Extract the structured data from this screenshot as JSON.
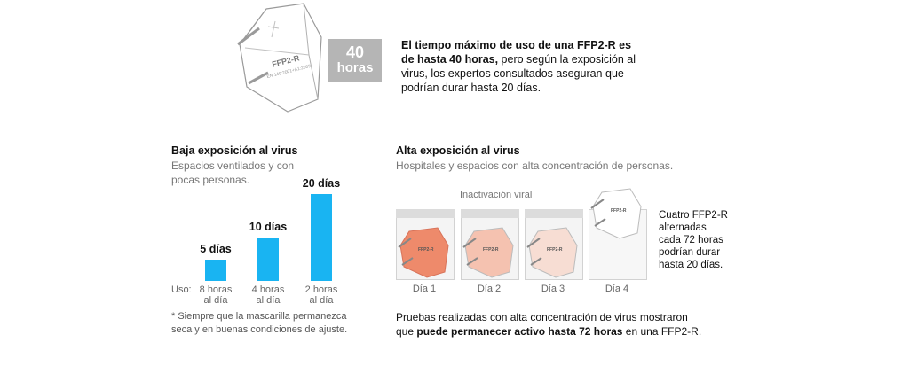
{
  "hero": {
    "mask_label": "FFP2-R",
    "mask_sub": "EN 149:2001+A1:2009",
    "badge_number": "40",
    "badge_unit": "horas",
    "text_bold_1": "El tiempo máximo de uso de una FFP2-R es de hasta 40 horas,",
    "text_rest": " pero según la exposición al virus, los expertos consultados aseguran que podrían durar hasta 20 días."
  },
  "low": {
    "title": "Baja exposición al virus",
    "subtitle": "Espacios ventilados y con pocas personas.",
    "uso_label": "Uso:",
    "note": "* Siempre que la mascarilla permanezca seca y en buenas condiciones de ajuste."
  },
  "high": {
    "title": "Alta exposición al virus",
    "subtitle": "Hospitales y espacios con alta concentración de personas.",
    "inactivation_label": "Inactivación viral",
    "days": [
      "Día 1",
      "Día 2",
      "Día 3",
      "Día 4"
    ],
    "mask_colors": [
      "#ee8a6b",
      "#f5c2b0",
      "#f7ddd3",
      "#ffffff"
    ],
    "side_note": "Cuatro FFP2-R alternadas cada 72 horas podrían durar hasta 20 días.",
    "foot_1": "Pruebas realizadas con alta concentración de virus mostraron",
    "foot_2a": "que ",
    "foot_2b": "puede permanecer activo hasta 72 horas",
    "foot_2c": " en una FFP2-R."
  },
  "chart_data": {
    "type": "bar",
    "categories": [
      "8 horas al día",
      "4 horas al día",
      "2 horas al día"
    ],
    "values": [
      5,
      10,
      20
    ],
    "value_labels": [
      "5 días",
      "10 días",
      "20 días"
    ],
    "x_line1": [
      "8 horas",
      "4 horas",
      "2 horas"
    ],
    "x_line2": [
      "al día",
      "al día",
      "al día"
    ],
    "color": "#19b4f2",
    "ylim": [
      0,
      20
    ]
  }
}
